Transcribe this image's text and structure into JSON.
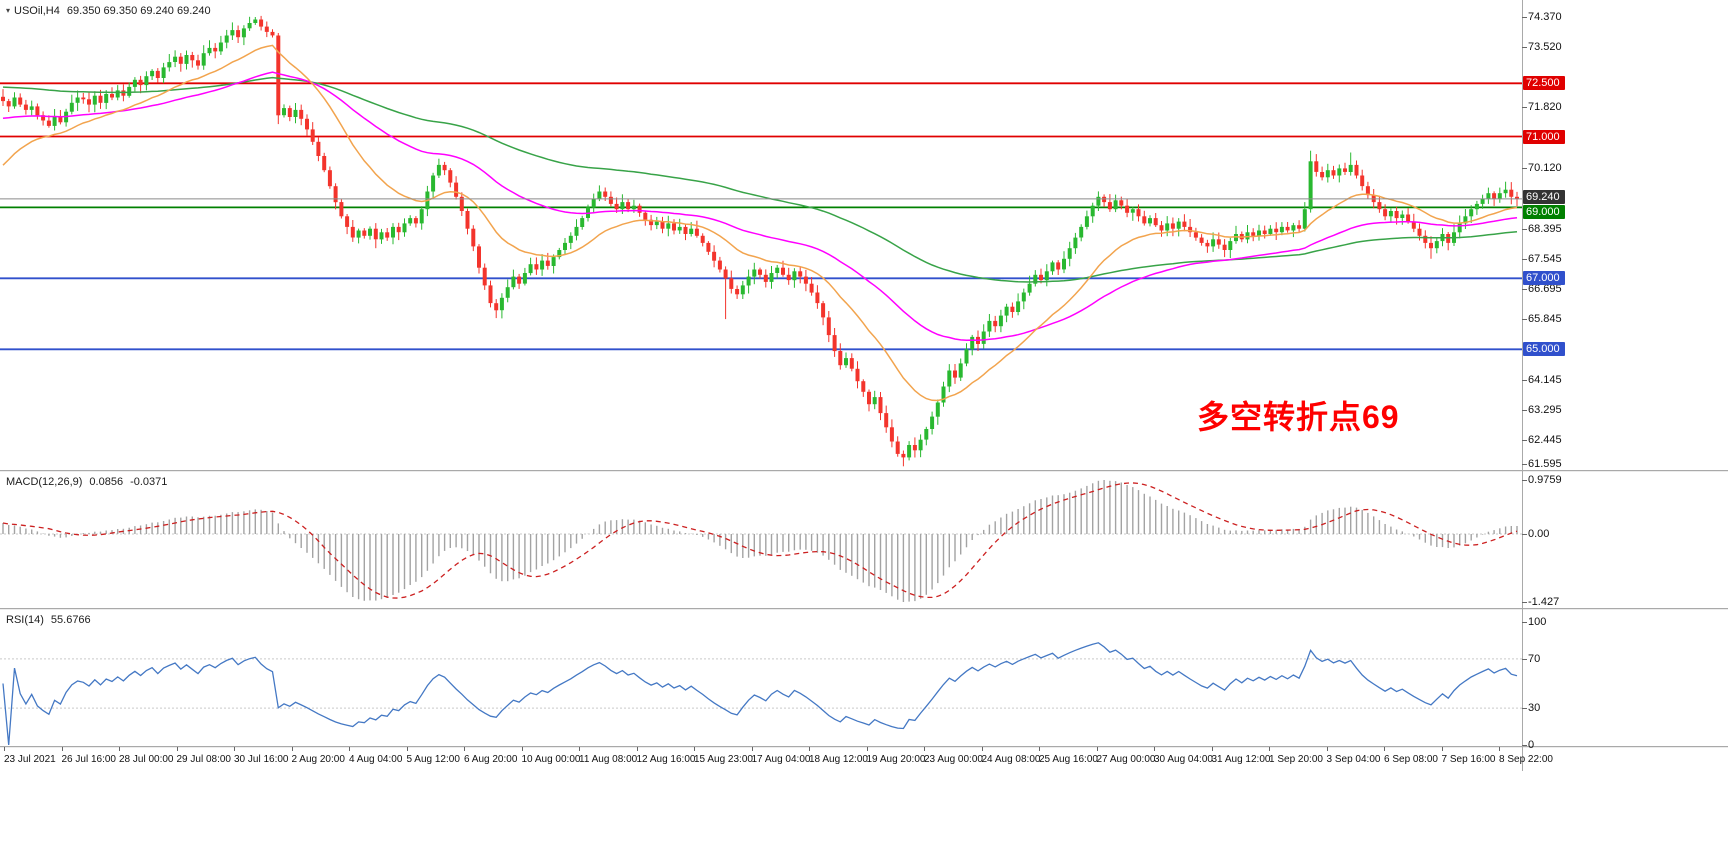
{
  "ui": {
    "header_marker": "▾",
    "symbol_period": "USOil,H4",
    "ohlc_text": "69.350 69.350 69.240 69.240",
    "macd_label": "MACD(12,26,9)",
    "macd_value": "0.0856",
    "macd_signal": "-0.0371",
    "rsi_label": "RSI(14)",
    "rsi_value": "55.6766"
  },
  "chart_data": {
    "type": "candlestick",
    "title": "USOil,H4 69.350 69.350 69.240 69.240",
    "symbol": "USOil",
    "timeframe": "H4",
    "current_ohlc": {
      "open": 69.35,
      "high": 69.35,
      "low": 69.24,
      "close": 69.24
    },
    "price_axis": {
      "price_at_top": 74.85,
      "price_at_bottom": 61.595,
      "ticks": [
        74.37,
        73.52,
        71.82,
        70.12,
        68.395,
        67.545,
        66.695,
        65.845,
        64.145,
        63.295,
        62.445,
        61.595
      ]
    },
    "x_labels": [
      "23 Jul 2021",
      "26 Jul 16:00",
      "28 Jul 00:00",
      "29 Jul 08:00",
      "30 Jul 16:00",
      "2 Aug 20:00",
      "4 Aug 04:00",
      "5 Aug 12:00",
      "6 Aug 20:00",
      "10 Aug 00:00",
      "11 Aug 08:00",
      "12 Aug 16:00",
      "15 Aug 23:00",
      "17 Aug 04:00",
      "18 Aug 12:00",
      "19 Aug 20:00",
      "23 Aug 00:00",
      "24 Aug 08:00",
      "25 Aug 16:00",
      "27 Aug 00:00",
      "30 Aug 04:00",
      "31 Aug 12:00",
      "1 Sep 20:00",
      "3 Sep 04:00",
      "6 Sep 08:00",
      "7 Sep 16:00",
      "8 Sep 22:00"
    ],
    "closes": [
      72.0,
      71.85,
      72.1,
      71.9,
      71.75,
      71.85,
      71.6,
      71.45,
      71.3,
      71.55,
      71.4,
      71.7,
      71.95,
      72.1,
      72.05,
      71.9,
      72.15,
      71.95,
      72.2,
      72.1,
      72.3,
      72.15,
      72.4,
      72.6,
      72.45,
      72.7,
      72.85,
      72.65,
      72.95,
      73.1,
      73.25,
      73.05,
      73.3,
      73.15,
      73.0,
      73.35,
      73.5,
      73.4,
      73.65,
      73.85,
      74.0,
      73.8,
      74.05,
      74.2,
      74.3,
      74.1,
      73.95,
      73.85,
      71.6,
      71.8,
      71.55,
      71.75,
      71.5,
      71.2,
      70.85,
      70.45,
      70.05,
      69.6,
      69.15,
      68.75,
      68.45,
      68.15,
      68.35,
      68.2,
      68.4,
      68.1,
      68.3,
      68.15,
      68.45,
      68.3,
      68.55,
      68.7,
      68.55,
      68.95,
      69.45,
      69.9,
      70.2,
      70.05,
      69.7,
      69.3,
      68.9,
      68.4,
      67.9,
      67.3,
      66.8,
      66.3,
      66.1,
      66.45,
      66.75,
      67.05,
      66.85,
      67.15,
      67.4,
      67.25,
      67.5,
      67.35,
      67.6,
      67.8,
      68.0,
      68.2,
      68.45,
      68.7,
      69.0,
      69.25,
      69.45,
      69.3,
      69.1,
      68.95,
      69.15,
      68.95,
      69.05,
      68.85,
      68.65,
      68.5,
      68.6,
      68.4,
      68.55,
      68.35,
      68.45,
      68.25,
      68.4,
      68.2,
      68.0,
      67.75,
      67.5,
      67.25,
      67.0,
      66.7,
      66.55,
      66.8,
      67.05,
      67.25,
      67.1,
      66.9,
      67.15,
      67.3,
      67.1,
      66.95,
      67.2,
      67.05,
      66.85,
      66.6,
      66.3,
      65.9,
      65.4,
      64.95,
      64.55,
      64.75,
      64.45,
      64.1,
      63.8,
      63.45,
      63.65,
      63.2,
      62.8,
      62.4,
      62.05,
      61.95,
      62.3,
      62.15,
      62.45,
      62.75,
      63.1,
      63.5,
      63.95,
      64.4,
      64.2,
      64.6,
      65.0,
      65.35,
      65.15,
      65.5,
      65.8,
      65.65,
      65.95,
      66.2,
      66.05,
      66.35,
      66.6,
      66.85,
      67.1,
      66.95,
      67.2,
      67.45,
      67.25,
      67.55,
      67.85,
      68.15,
      68.45,
      68.75,
      69.05,
      69.3,
      69.15,
      68.95,
      69.2,
      69.05,
      68.85,
      68.95,
      68.75,
      68.55,
      68.7,
      68.5,
      68.35,
      68.55,
      68.4,
      68.6,
      68.45,
      68.3,
      68.15,
      68.0,
      67.9,
      68.1,
      67.95,
      67.8,
      68.05,
      68.25,
      68.1,
      68.3,
      68.2,
      68.35,
      68.25,
      68.4,
      68.3,
      68.45,
      68.35,
      68.5,
      68.4,
      68.95,
      70.3,
      70.0,
      69.85,
      70.05,
      69.9,
      70.1,
      70.0,
      70.2,
      69.9,
      69.6,
      69.35,
      69.15,
      68.95,
      68.75,
      68.9,
      68.7,
      68.8,
      68.6,
      68.4,
      68.2,
      68.0,
      67.85,
      68.05,
      68.25,
      68.0,
      68.3,
      68.55,
      68.75,
      68.95,
      69.1,
      69.25,
      69.4,
      69.25,
      69.4,
      69.5,
      69.3,
      69.24
    ],
    "wick_overrides": {
      "44": {
        "h": 74.37
      },
      "48": {
        "l": 71.35
      },
      "65": {
        "l": 67.85
      },
      "86": {
        "l": 65.88
      },
      "104": {
        "h": 69.62
      },
      "126": {
        "l": 65.85
      },
      "157": {
        "l": 61.7
      },
      "213": {
        "l": 67.6
      },
      "228": {
        "h": 70.6
      },
      "235": {
        "h": 70.55
      },
      "249": {
        "l": 67.55
      }
    },
    "horizontal_levels": [
      {
        "price": 72.5,
        "label": "72.500",
        "color": "#e00000"
      },
      {
        "price": 71.0,
        "label": "71.000",
        "color": "#e00000"
      },
      {
        "price": 69.0,
        "label": "69.000",
        "color": "#008000"
      },
      {
        "price": 67.0,
        "label": "67.000",
        "color": "#3050cc"
      },
      {
        "price": 65.0,
        "label": "65.000",
        "color": "#3050cc"
      }
    ],
    "last_price": {
      "value": 69.24,
      "label": "69.240",
      "line_color": "#8a8a8a",
      "badge_color": "#333333"
    },
    "moving_averages": [
      {
        "name": "ma-slow-green-line",
        "period": 120,
        "seed": 72.4,
        "color": "#38a348"
      },
      {
        "name": "ma-mid-magenta-line",
        "period": 55,
        "seed": 71.5,
        "color": "#ff00ff"
      },
      {
        "name": "ma-fast-orange-line",
        "period": 20,
        "seed": 70.0,
        "color": "#f2a44e"
      }
    ],
    "style": {
      "candle_up": "#29b830",
      "candle_down": "#f3342c"
    },
    "indicators": {
      "macd": {
        "fast": 12,
        "slow": 26,
        "signal": 9,
        "value": 0.0856,
        "signal_value": -0.0371,
        "axis_max": 0.9759,
        "axis_min": -1.427,
        "axis_labels": [
          "0.9759",
          "0.00",
          "-1.427"
        ],
        "histogram_color": "#a3a3a3",
        "signal_color": "#cc2020"
      },
      "rsi": {
        "period": 14,
        "value": 55.6766,
        "levels": [
          70,
          30
        ],
        "axis": [
          100,
          70,
          30,
          0
        ],
        "color": "#4478c4"
      }
    },
    "annotation": {
      "text": "多空转折点69",
      "color": "#fe0000"
    }
  }
}
